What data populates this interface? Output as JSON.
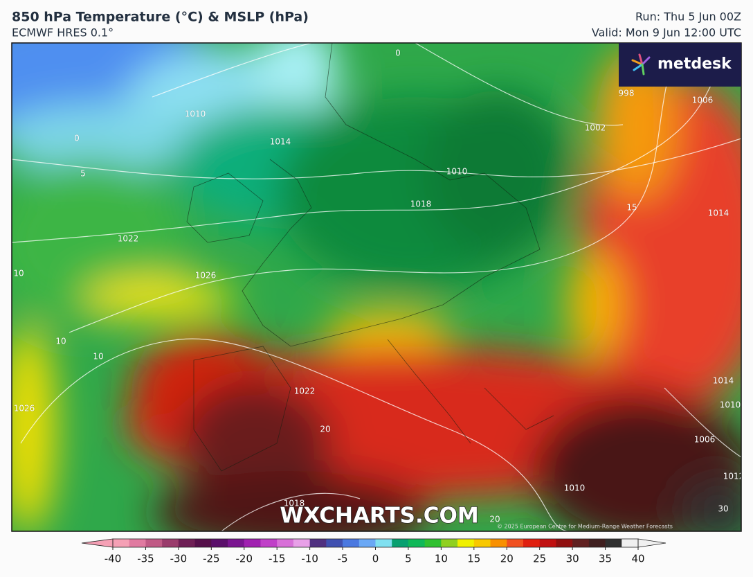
{
  "header": {
    "title": "850 hPa Temperature (°C) & MSLP (hPa)",
    "subtitle": "ECMWF HRES 0.1°",
    "run": "Run: Thu 5 Jun 00Z",
    "valid": "Valid: Mon 9 Jun 12:00 UTC"
  },
  "logo": "metdesk",
  "watermark": "WXCHARTS.COM",
  "copyright": "© 2025 European Centre for Medium-Range Weather Forecasts",
  "map_labels": [
    "0",
    "1010",
    "1014",
    "0",
    "5",
    "1022",
    "1026",
    "10",
    "10",
    "10",
    "1026",
    "1022",
    "20",
    "1018",
    "1010",
    "1002",
    "1018",
    "15",
    "1014",
    "1006",
    "1014",
    "1010",
    "1006",
    "1012",
    "1010",
    "20",
    "998",
    "30"
  ],
  "colorbar": {
    "ticks": [
      -40,
      -35,
      -30,
      -25,
      -20,
      -15,
      -10,
      -5,
      0,
      5,
      10,
      15,
      20,
      25,
      30,
      35,
      40
    ],
    "range": [
      -40,
      40
    ],
    "colors": [
      "#f5a0b5",
      "#e07aa0",
      "#c05a85",
      "#9a3c6c",
      "#6e1f55",
      "#55104a",
      "#5a0f6a",
      "#7a1590",
      "#a020b0",
      "#c040c8",
      "#d870d8",
      "#e8a0e8",
      "#503080",
      "#4050b0",
      "#4a78e0",
      "#6aa8f5",
      "#80e0f0",
      "#08a070",
      "#10b858",
      "#30c030",
      "#90d020",
      "#f0f000",
      "#f8c800",
      "#f89000",
      "#f05020",
      "#e02010",
      "#c01010",
      "#901010",
      "#602020",
      "#402020",
      "#303030",
      "#f0f0f0"
    ]
  }
}
